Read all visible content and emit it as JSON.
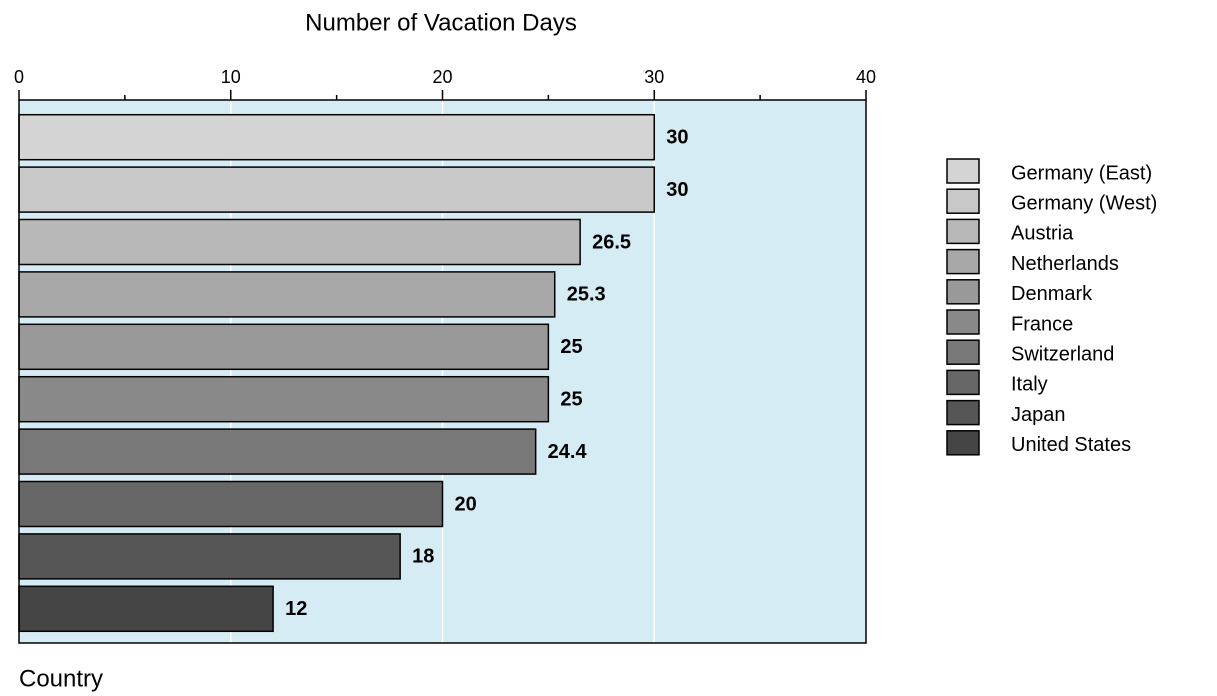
{
  "chart_data": {
    "type": "hbar",
    "title": "Number of Vacation Days",
    "y_label": "Country",
    "categories": [
      "Germany (East)",
      "Germany (West)",
      "Austria",
      "Netherlands",
      "Denmark",
      "France",
      "Switzerland",
      "Italy",
      "Japan",
      "United States"
    ],
    "values": [
      30,
      30,
      26.5,
      25.3,
      25,
      25,
      24.4,
      20,
      18,
      12
    ],
    "colors": [
      "#d4d4d4",
      "#c8c8c8",
      "#b8b8b8",
      "#a8a8a8",
      "#999999",
      "#898989",
      "#787878",
      "#676767",
      "#565656",
      "#454545"
    ],
    "xlim": [
      0,
      40
    ],
    "xticks": [
      0,
      10,
      20,
      30,
      40
    ],
    "xticks_minor": [
      5,
      15,
      25,
      35
    ],
    "grid": true,
    "legend": "right",
    "background": "#d6ecf4"
  }
}
